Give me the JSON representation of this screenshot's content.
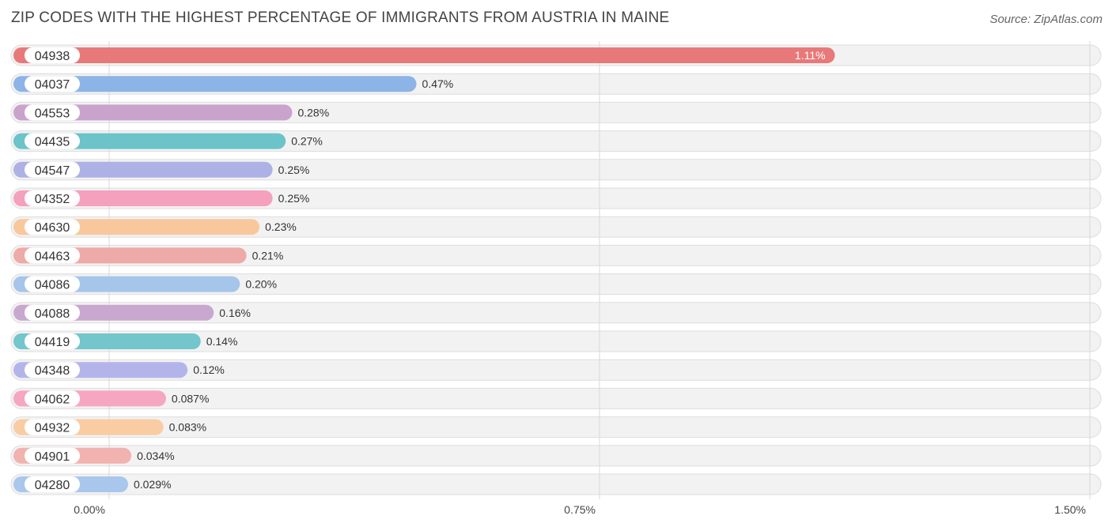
{
  "header": {
    "title": "ZIP CODES WITH THE HIGHEST PERCENTAGE OF IMMIGRANTS FROM AUSTRIA IN MAINE",
    "source": "Source: ZipAtlas.com"
  },
  "chart_data": {
    "type": "bar",
    "orientation": "horizontal",
    "title": "ZIP CODES WITH THE HIGHEST PERCENTAGE OF IMMIGRANTS FROM AUSTRIA IN MAINE",
    "xlabel": "",
    "ylabel": "",
    "xlim": [
      0,
      1.5
    ],
    "ticks": [
      0,
      0.75,
      1.5
    ],
    "tick_labels": [
      "0.00%",
      "0.75%",
      "1.50%"
    ],
    "categories": [
      "04938",
      "04037",
      "04553",
      "04435",
      "04547",
      "04352",
      "04630",
      "04463",
      "04086",
      "04088",
      "04419",
      "04348",
      "04062",
      "04932",
      "04901",
      "04280"
    ],
    "values": [
      1.11,
      0.47,
      0.28,
      0.27,
      0.25,
      0.25,
      0.23,
      0.21,
      0.2,
      0.16,
      0.14,
      0.12,
      0.087,
      0.083,
      0.034,
      0.029
    ],
    "value_labels": [
      "1.11%",
      "0.47%",
      "0.28%",
      "0.27%",
      "0.25%",
      "0.25%",
      "0.23%",
      "0.21%",
      "0.20%",
      "0.16%",
      "0.14%",
      "0.12%",
      "0.087%",
      "0.083%",
      "0.034%",
      "0.029%"
    ],
    "colors": [
      "#e8797a",
      "#8cb4e6",
      "#c9a3cc",
      "#6cc3c9",
      "#adb1e6",
      "#f5a0bc",
      "#f8c89c",
      "#eeaaa8",
      "#a6c5ea",
      "#c9a8d0",
      "#72c6cc",
      "#b3b5ea",
      "#f6a6c0",
      "#f9cca2",
      "#f1b2b0",
      "#a9c7ec"
    ]
  }
}
